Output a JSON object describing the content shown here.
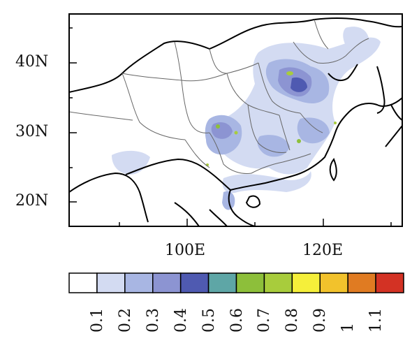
{
  "map": {
    "lat_ticks": [
      "40N",
      "30N",
      "20N"
    ],
    "lon_ticks": [
      "100E",
      "120E"
    ]
  },
  "colorbar": {
    "colors": [
      "#ffffff",
      "#d3dbf2",
      "#a8b6e3",
      "#8c94d2",
      "#4f5ab1",
      "#5ea6a6",
      "#8dbf3a",
      "#a8cc3c",
      "#f5ef3a",
      "#f2c22c",
      "#e07b22",
      "#d33224"
    ],
    "labels": [
      "0.1",
      "0.2",
      "0.3",
      "0.4",
      "0.5",
      "0.6",
      "0.7",
      "0.8",
      "0.9",
      "1",
      "1.1"
    ]
  }
}
